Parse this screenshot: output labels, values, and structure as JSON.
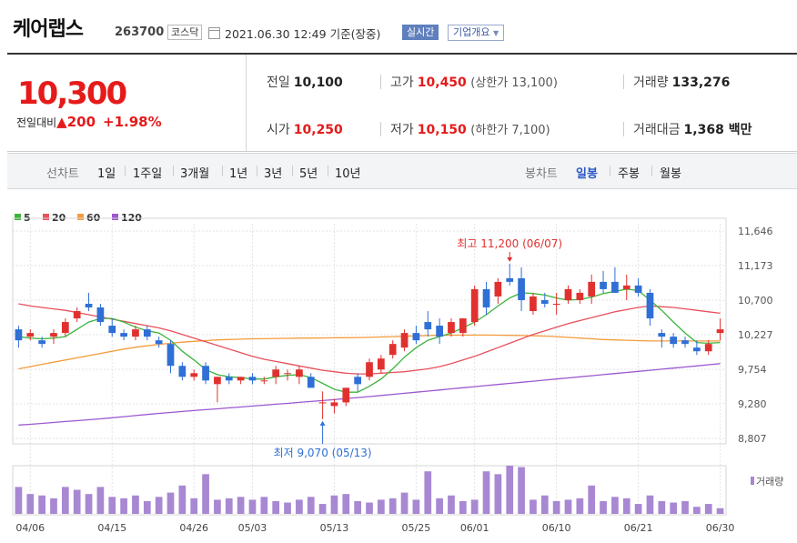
{
  "header": {
    "company": "케어랩스",
    "code": "263700",
    "market": "코스닥",
    "timestamp": "2021.06.30 12:49",
    "basis": "기준(장중)",
    "realtime": "실시간",
    "overview": "기업개요"
  },
  "quote": {
    "price": "10,300",
    "change_label": "전일대비",
    "change": "▲200",
    "change_pct": "+1.98%",
    "prev_label": "전일",
    "prev": "10,100",
    "high_label": "고가",
    "high": "10,450",
    "upper_limit": "(상한가 13,100)",
    "volume_label": "거래량",
    "volume": "133,276",
    "open_label": "시가",
    "open": "10,250",
    "low_label": "저가",
    "low": "10,150",
    "lower_limit": "(하한가 7,100)",
    "amount_label": "거래대금",
    "amount": "1,368 백만"
  },
  "period_bar": {
    "period_label": "선차트",
    "periods": [
      "1일",
      "1주일",
      "3개월",
      "1년",
      "3년",
      "5년",
      "10년"
    ],
    "candle_label": "봉차트",
    "candles": [
      "일봉",
      "주봉",
      "월봉"
    ],
    "selected_candle": "일봉"
  },
  "chart_data": {
    "type": "candlestick",
    "legend": [
      {
        "name": "5",
        "color": "#3cb43c"
      },
      {
        "name": "20",
        "color": "#e8505b"
      },
      {
        "name": "60",
        "color": "#f39c3c"
      },
      {
        "name": "120",
        "color": "#9b59d0"
      }
    ],
    "yticks": [
      "11,646",
      "11,173",
      "10,700",
      "10,227",
      "9,754",
      "9,280",
      "8,807"
    ],
    "ylim": [
      8807,
      11646
    ],
    "xticks": [
      {
        "i": 1,
        "label": "04/06"
      },
      {
        "i": 8,
        "label": "04/15"
      },
      {
        "i": 15,
        "label": "04/26"
      },
      {
        "i": 20,
        "label": "05/03"
      },
      {
        "i": 27,
        "label": "05/13"
      },
      {
        "i": 34,
        "label": "05/25"
      },
      {
        "i": 39,
        "label": "06/01"
      },
      {
        "i": 46,
        "label": "06/10"
      },
      {
        "i": 53,
        "label": "06/21"
      },
      {
        "i": 60,
        "label": "06/30"
      }
    ],
    "volume_label": "거래량",
    "annotation_high": "최고 11,200 (06/07)",
    "annotation_low": "최저 9,070 (05/13)",
    "candles": [
      [
        10300,
        10350,
        10050,
        10150
      ],
      [
        10200,
        10300,
        10150,
        10250
      ],
      [
        10150,
        10200,
        10050,
        10100
      ],
      [
        10200,
        10300,
        10100,
        10250
      ],
      [
        10250,
        10450,
        10200,
        10400
      ],
      [
        10450,
        10600,
        10400,
        10550
      ],
      [
        10650,
        10800,
        10550,
        10600
      ],
      [
        10600,
        10650,
        10350,
        10400
      ],
      [
        10350,
        10450,
        10200,
        10250
      ],
      [
        10250,
        10300,
        10150,
        10200
      ],
      [
        10200,
        10350,
        10150,
        10300
      ],
      [
        10300,
        10350,
        10150,
        10200
      ],
      [
        10150,
        10200,
        10050,
        10100
      ],
      [
        10100,
        10150,
        9700,
        9800
      ],
      [
        9800,
        9850,
        9600,
        9650
      ],
      [
        9650,
        9750,
        9600,
        9700
      ],
      [
        9800,
        9850,
        9550,
        9600
      ],
      [
        9550,
        9650,
        9300,
        9650
      ],
      [
        9650,
        9700,
        9550,
        9600
      ],
      [
        9600,
        9650,
        9550,
        9650
      ],
      [
        9650,
        9700,
        9550,
        9600
      ],
      [
        9600,
        9650,
        9550,
        9600
      ],
      [
        9650,
        9800,
        9550,
        9750
      ],
      [
        9700,
        9750,
        9600,
        9700
      ],
      [
        9650,
        9800,
        9550,
        9750
      ],
      [
        9650,
        9700,
        9500,
        9500
      ],
      [
        9300,
        9450,
        9070,
        9300
      ],
      [
        9250,
        9350,
        9150,
        9300
      ],
      [
        9300,
        9500,
        9250,
        9500
      ],
      [
        9650,
        9700,
        9450,
        9550
      ],
      [
        9650,
        9900,
        9600,
        9850
      ],
      [
        9750,
        9950,
        9700,
        9900
      ],
      [
        9950,
        10150,
        9900,
        10100
      ],
      [
        10050,
        10300,
        10000,
        10250
      ],
      [
        10250,
        10350,
        10100,
        10150
      ],
      [
        10400,
        10550,
        10200,
        10300
      ],
      [
        10350,
        10450,
        10100,
        10200
      ],
      [
        10250,
        10450,
        10200,
        10400
      ],
      [
        10250,
        10450,
        10200,
        10450
      ],
      [
        10400,
        10900,
        10350,
        10850
      ],
      [
        10850,
        10950,
        10500,
        10600
      ],
      [
        10750,
        11000,
        10650,
        10950
      ],
      [
        11000,
        11200,
        10900,
        10950
      ],
      [
        11000,
        11150,
        10550,
        10700
      ],
      [
        10550,
        10800,
        10500,
        10750
      ],
      [
        10700,
        10800,
        10600,
        10650
      ],
      [
        10650,
        10800,
        10500,
        10650
      ],
      [
        10700,
        10900,
        10650,
        10850
      ],
      [
        10700,
        10850,
        10650,
        10800
      ],
      [
        10750,
        11050,
        10650,
        10950
      ],
      [
        10950,
        11100,
        10800,
        10850
      ],
      [
        10950,
        11150,
        10800,
        10800
      ],
      [
        10850,
        11050,
        10700,
        10900
      ],
      [
        10900,
        11000,
        10750,
        10800
      ],
      [
        10800,
        10850,
        10350,
        10450
      ],
      [
        10250,
        10300,
        10050,
        10200
      ],
      [
        10200,
        10250,
        10050,
        10100
      ],
      [
        10150,
        10200,
        10050,
        10100
      ],
      [
        10050,
        10150,
        9950,
        10000
      ],
      [
        10000,
        10150,
        9950,
        10100
      ],
      [
        10250,
        10450,
        10150,
        10300
      ]
    ],
    "volumes": [
      38,
      28,
      26,
      22,
      38,
      34,
      28,
      38,
      24,
      22,
      26,
      18,
      24,
      30,
      40,
      22,
      56,
      20,
      22,
      24,
      20,
      24,
      18,
      16,
      20,
      24,
      14,
      26,
      28,
      18,
      16,
      20,
      22,
      30,
      20,
      60,
      22,
      26,
      18,
      20,
      60,
      56,
      68,
      66,
      20,
      26,
      18,
      20,
      22,
      40,
      18,
      24,
      22,
      14,
      26,
      18,
      16,
      18,
      10,
      14,
      8
    ],
    "ma5": [
      10200,
      10180,
      10170,
      10180,
      10200,
      10300,
      10400,
      10450,
      10450,
      10400,
      10330,
      10280,
      10250,
      10150,
      10000,
      9880,
      9750,
      9680,
      9650,
      9640,
      9620,
      9620,
      9650,
      9670,
      9680,
      9640,
      9560,
      9480,
      9440,
      9440,
      9520,
      9620,
      9760,
      9920,
      10050,
      10150,
      10200,
      10250,
      10320,
      10400,
      10500,
      10620,
      10730,
      10800,
      10790,
      10770,
      10730,
      10700,
      10710,
      10740,
      10790,
      10820,
      10850,
      10830,
      10700,
      10560,
      10400,
      10250,
      10120,
      10110,
      10120
    ],
    "ma20": [
      10650,
      10620,
      10600,
      10580,
      10560,
      10530,
      10500,
      10470,
      10440,
      10410,
      10380,
      10350,
      10320,
      10280,
      10230,
      10180,
      10130,
      10080,
      10030,
      9980,
      9930,
      9890,
      9860,
      9830,
      9800,
      9770,
      9740,
      9720,
      9700,
      9690,
      9690,
      9700,
      9710,
      9720,
      9740,
      9760,
      9790,
      9830,
      9880,
      9930,
      9990,
      10050,
      10110,
      10170,
      10230,
      10280,
      10330,
      10380,
      10420,
      10460,
      10500,
      10540,
      10570,
      10600,
      10620,
      10610,
      10600,
      10580,
      10560,
      10540,
      10520
    ],
    "ma60": [
      9760,
      9790,
      9820,
      9850,
      9880,
      9910,
      9940,
      9970,
      10000,
      10030,
      10055,
      10075,
      10095,
      10110,
      10125,
      10135,
      10145,
      10155,
      10160,
      10165,
      10170,
      10172,
      10175,
      10177,
      10180,
      10180,
      10182,
      10184,
      10186,
      10188,
      10190,
      10195,
      10200,
      10205,
      10210,
      10215,
      10218,
      10220,
      10220,
      10222,
      10222,
      10220,
      10218,
      10215,
      10212,
      10208,
      10200,
      10190,
      10180,
      10170,
      10160,
      10155,
      10150,
      10145,
      10140,
      10140,
      10140,
      10140,
      10140,
      10140,
      10140
    ],
    "ma120": [
      8990,
      9000,
      9012,
      9025,
      9038,
      9050,
      9062,
      9075,
      9090,
      9105,
      9120,
      9135,
      9150,
      9162,
      9175,
      9188,
      9200,
      9212,
      9225,
      9237,
      9250,
      9262,
      9275,
      9287,
      9300,
      9312,
      9325,
      9338,
      9352,
      9366,
      9380,
      9395,
      9410,
      9425,
      9440,
      9455,
      9470,
      9485,
      9500,
      9515,
      9530,
      9545,
      9560,
      9575,
      9590,
      9605,
      9620,
      9635,
      9650,
      9665,
      9680,
      9695,
      9710,
      9725,
      9740,
      9755,
      9770,
      9785,
      9800,
      9815,
      9830
    ]
  }
}
